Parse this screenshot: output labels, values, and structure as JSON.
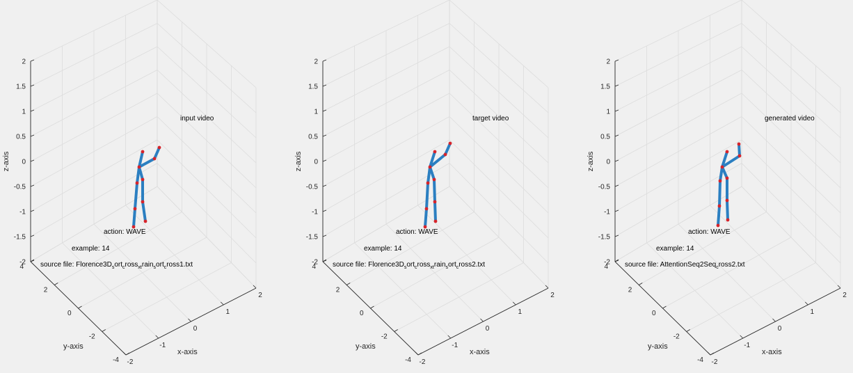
{
  "chart_data": [
    {
      "type": "scatter",
      "variant": "3d-skeleton",
      "title": "",
      "xlabel": "x-axis",
      "ylabel": "y-axis",
      "zlabel": "z-axis",
      "xlim": [
        -2,
        2
      ],
      "ylim": [
        -4,
        4
      ],
      "zlim": [
        -2,
        2
      ],
      "xticks": [
        "-2",
        "-1",
        "0",
        "1",
        "2"
      ],
      "yticks": [
        "-4",
        "-2",
        "0",
        "2",
        "4"
      ],
      "zticks": [
        "-2",
        "-1.5",
        "-1",
        "-0.5",
        "0",
        "0.5",
        "1",
        "1.5",
        "2"
      ],
      "grid": true,
      "annotations": {
        "video": "input video",
        "action": "action: WAVE",
        "example": "example: 14",
        "source_prefix": "source file: Florence3D",
        "source_parts": [
          [
            "s",
            "sub"
          ],
          [
            "ort",
            ""
          ],
          [
            "c",
            "sub"
          ],
          [
            "ross",
            ""
          ],
          [
            "xt",
            "sub"
          ],
          [
            "rain",
            ""
          ],
          [
            "s",
            "sub"
          ],
          [
            "ort",
            ""
          ],
          [
            "c",
            "sub"
          ],
          [
            "ross1.txt",
            ""
          ]
        ]
      },
      "skeleton": [
        [
          205,
          218
        ],
        [
          200,
          240
        ],
        [
          197,
          263
        ],
        [
          194,
          300
        ],
        [
          192,
          326
        ],
        [
          205,
          258
        ],
        [
          205,
          290
        ],
        [
          209,
          318
        ],
        [
          222,
          228
        ],
        [
          229,
          212
        ]
      ]
    },
    {
      "type": "scatter",
      "variant": "3d-skeleton",
      "title": "",
      "xlabel": "x-axis",
      "ylabel": "y-axis",
      "zlabel": "z-axis",
      "xlim": [
        -2,
        2
      ],
      "ylim": [
        -4,
        4
      ],
      "zlim": [
        -2,
        2
      ],
      "xticks": [
        "-2",
        "-1",
        "0",
        "1",
        "2"
      ],
      "yticks": [
        "-4",
        "-2",
        "0",
        "2",
        "4"
      ],
      "zticks": [
        "-2",
        "-1.5",
        "-1",
        "-0.5",
        "0",
        "0.5",
        "1",
        "1.5",
        "2"
      ],
      "grid": true,
      "annotations": {
        "video": "target video",
        "action": "action: WAVE",
        "example": "example: 14",
        "source_prefix": "source file: Florence3D",
        "source_parts": [
          [
            "s",
            "sub"
          ],
          [
            "ort",
            ""
          ],
          [
            "c",
            "sub"
          ],
          [
            "ross",
            ""
          ],
          [
            "xt",
            "sub"
          ],
          [
            "rain",
            ""
          ],
          [
            "s",
            "sub"
          ],
          [
            "ort",
            ""
          ],
          [
            "c",
            "sub"
          ],
          [
            "ross2.txt",
            ""
          ]
        ]
      },
      "skeleton": [
        [
          625,
          218
        ],
        [
          618,
          240
        ],
        [
          615,
          263
        ],
        [
          613,
          300
        ],
        [
          611,
          326
        ],
        [
          624,
          258
        ],
        [
          625,
          290
        ],
        [
          626,
          318
        ],
        [
          640,
          222
        ],
        [
          647,
          206
        ]
      ]
    },
    {
      "type": "scatter",
      "variant": "3d-skeleton",
      "title": "",
      "xlabel": "x-axis",
      "ylabel": "y-axis",
      "zlabel": "z-axis",
      "xlim": [
        -2,
        2
      ],
      "ylim": [
        -4,
        4
      ],
      "zlim": [
        -2,
        2
      ],
      "xticks": [
        "-2",
        "-1",
        "0",
        "1",
        "2"
      ],
      "yticks": [
        "-4",
        "-2",
        "0",
        "2",
        "4"
      ],
      "zticks": [
        "-2",
        "-1.5",
        "-1",
        "-0.5",
        "0",
        "0.5",
        "1",
        "1.5",
        "2"
      ],
      "grid": true,
      "annotations": {
        "video": "generated video",
        "action": "action: WAVE",
        "example": "example: 14",
        "source_prefix": "source file: AttentionSeq2Seq",
        "source_parts": [
          [
            "c",
            "sub"
          ],
          [
            "ross2.txt",
            ""
          ]
        ]
      },
      "skeleton": [
        [
          1045,
          218
        ],
        [
          1038,
          240
        ],
        [
          1035,
          260
        ],
        [
          1034,
          296
        ],
        [
          1032,
          324
        ],
        [
          1045,
          256
        ],
        [
          1045,
          288
        ],
        [
          1046,
          316
        ],
        [
          1063,
          224
        ],
        [
          1062,
          207
        ]
      ]
    }
  ]
}
